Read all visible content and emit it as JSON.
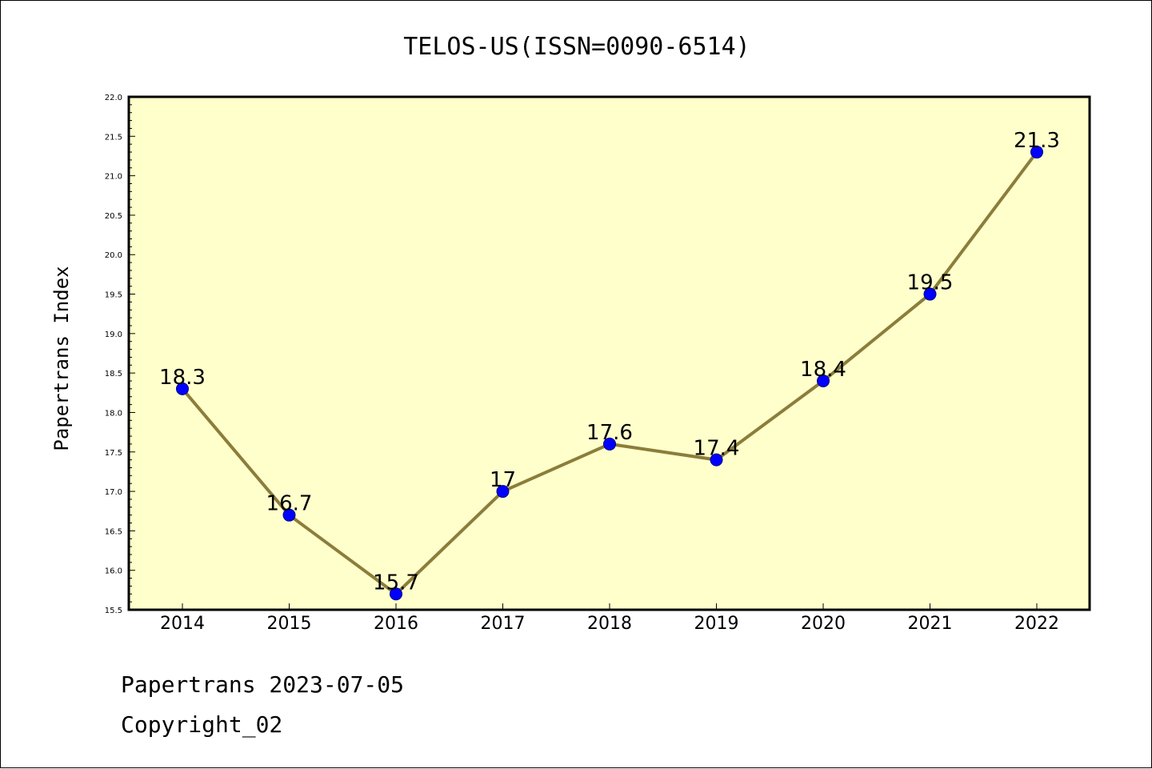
{
  "chart_data": {
    "type": "line",
    "title": "TELOS-US(ISSN=0090-6514)",
    "xlabel": "",
    "ylabel": "Papertrans Index",
    "categories": [
      "2014",
      "2015",
      "2016",
      "2017",
      "2018",
      "2019",
      "2020",
      "2021",
      "2022"
    ],
    "values": [
      18.3,
      16.7,
      15.7,
      17.0,
      17.6,
      17.4,
      18.4,
      19.5,
      21.3
    ],
    "data_labels": [
      "18.3",
      "16.7",
      "15.7",
      "17",
      "17.6",
      "17.4",
      "18.4",
      "19.5",
      "21.3"
    ],
    "ylim": [
      15.5,
      22.0
    ],
    "yticks": [
      "15.5",
      "16.0",
      "16.5",
      "17.0",
      "17.5",
      "18.0",
      "18.5",
      "19.0",
      "19.5",
      "20.0",
      "20.5",
      "21.0",
      "21.5",
      "22.0"
    ],
    "grid": false,
    "legend": "none",
    "colors": {
      "plot_background": "#ffffcc",
      "line": "#8b7d3a",
      "marker_fill": "#0000ff",
      "marker_edge": "#000080"
    }
  },
  "footer": {
    "line1": "Papertrans 2023-07-05",
    "line2": "Copyright_02"
  }
}
